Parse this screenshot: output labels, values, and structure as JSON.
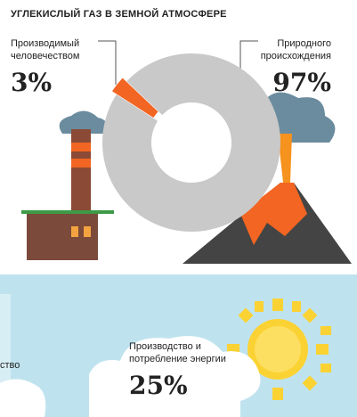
{
  "chart_data": {
    "type": "donut",
    "title": "УГЛЕКИСЛЫЙ ГАЗ В ЗЕМНОЙ АТМОСФЕРЕ",
    "categories": [
      "Производимый человечеством",
      "Природного происхождения"
    ],
    "values": [
      3,
      97
    ],
    "value_labels": [
      "3%",
      "97%"
    ],
    "colors": [
      "#f26522",
      "#c9c9c9"
    ]
  },
  "panel": {
    "label": "Производство и потребление энергии",
    "value_label": "25%",
    "cut_label": "ство"
  }
}
